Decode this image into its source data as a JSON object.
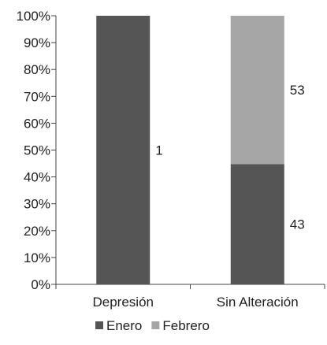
{
  "chart_data": {
    "type": "bar",
    "stacked": "percent",
    "categories": [
      "Depresión",
      "Sin Alteración"
    ],
    "series": [
      {
        "name": "Enero",
        "values": [
          1,
          43
        ],
        "color": "#555555"
      },
      {
        "name": "Febrero",
        "values": [
          0,
          53
        ],
        "color": "#a6a6a6"
      }
    ],
    "data_labels": [
      {
        "category": "Depresión",
        "series": "Enero",
        "text": "1"
      },
      {
        "category": "Sin Alteración",
        "series": "Febrero",
        "text": "53"
      },
      {
        "category": "Sin Alteración",
        "series": "Enero",
        "text": "43"
      }
    ],
    "y_ticks": [
      "0%",
      "10%",
      "20%",
      "30%",
      "40%",
      "50%",
      "60%",
      "70%",
      "80%",
      "90%",
      "100%"
    ],
    "ylim": [
      0,
      100
    ],
    "grid": false,
    "legend_position": "bottom"
  }
}
